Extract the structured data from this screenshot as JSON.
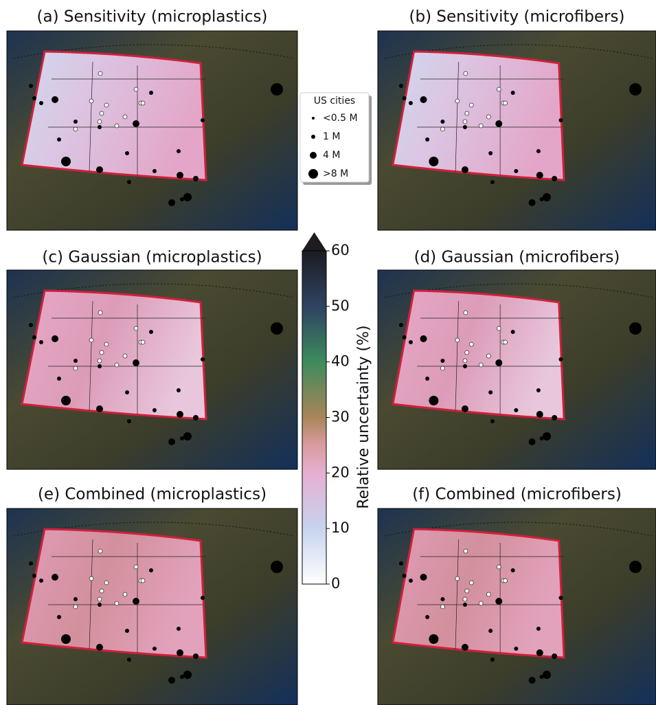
{
  "panels": [
    {
      "title": "(a) Sensitivity (microplastics)"
    },
    {
      "title": "(b) Sensitivity (microfibers)"
    },
    {
      "title": "(c) Gaussian (microplastics)"
    },
    {
      "title": "(d) Gaussian (microfibers)"
    },
    {
      "title": "(e) Combined (microplastics)"
    },
    {
      "title": "(f) Combined (microfibers)"
    }
  ],
  "legend": {
    "title": "US cities",
    "entries": [
      "<0.5 M",
      "1 M",
      "4 M",
      ">8 M"
    ]
  },
  "colorbar": {
    "label": "Relative uncertainty (%)",
    "lim": [
      0,
      60
    ],
    "ticks": [
      0,
      10,
      20,
      30,
      40,
      50,
      60
    ]
  }
}
